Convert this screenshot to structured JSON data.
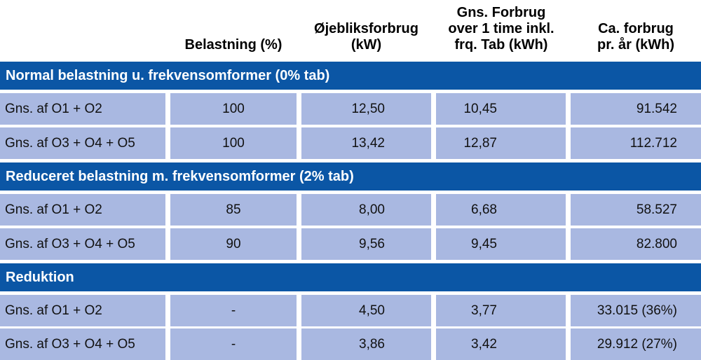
{
  "headers": {
    "load": "Belastning (%)",
    "instant": "Øjebliksforbrug\n(kW)",
    "avg_hour": "Gns. Forbrug\nover 1 time inkl.\nfrq. Tab (kWh)",
    "yearly": "Ca. forbrug\npr. år (kWh)"
  },
  "sections": [
    {
      "title": "Normal belastning u. frekvensomformer (0% tab)",
      "rows": [
        {
          "label": "Gns. af O1 + O2",
          "load": "100",
          "instant": "12,50",
          "avg_hour": "10,45",
          "yearly": "91.542"
        },
        {
          "label": "Gns. af O3 + O4 + O5",
          "load": "100",
          "instant": "13,42",
          "avg_hour": "12,87",
          "yearly": "112.712"
        }
      ]
    },
    {
      "title": "Reduceret belastning m. frekvensomformer (2% tab)",
      "rows": [
        {
          "label": "Gns. af O1 + O2",
          "load": "85",
          "instant": "8,00",
          "avg_hour": "6,68",
          "yearly": "58.527"
        },
        {
          "label": "Gns. af O3 + O4 + O5",
          "load": "90",
          "instant": "9,56",
          "avg_hour": "9,45",
          "yearly": "82.800"
        }
      ]
    },
    {
      "title": "Reduktion",
      "rows": [
        {
          "label": "Gns. af O1 + O2",
          "load": "-",
          "instant": "4,50",
          "avg_hour": "3,77",
          "yearly": "33.015 (36%)"
        },
        {
          "label": "Gns. af O3 + O4 + O5",
          "load": "-",
          "instant": "3,86",
          "avg_hour": "3,42",
          "yearly": "29.912 (27%)"
        }
      ]
    }
  ],
  "colors": {
    "section_header": "#0b56a5",
    "cell_bg": "#a9b8e1"
  }
}
